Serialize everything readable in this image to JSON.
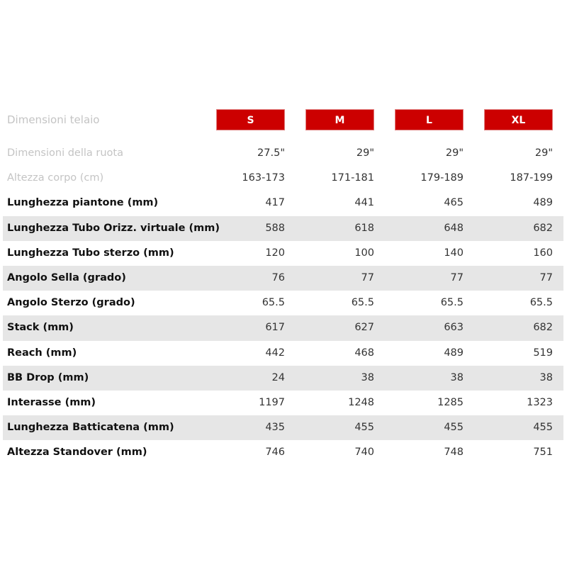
{
  "header": {
    "label": "Dimensioni telaio",
    "sizes": [
      "S",
      "M",
      "L",
      "XL"
    ]
  },
  "colors": {
    "accent": "#cc0000",
    "row_shade": "#e6e6e6"
  },
  "rows": [
    {
      "label": "Dimensioni della ruota",
      "values": [
        "27.5\"",
        "29\"",
        "29\"",
        "29\""
      ],
      "muted": true
    },
    {
      "label": "Altezza corpo (cm)",
      "values": [
        "163-173",
        "171-181",
        "179-189",
        "187-199"
      ],
      "muted": true
    },
    {
      "label": "Lunghezza piantone (mm)",
      "values": [
        "417",
        "441",
        "465",
        "489"
      ]
    },
    {
      "label": "Lunghezza Tubo Orizz. virtuale (mm)",
      "values": [
        "588",
        "618",
        "648",
        "682"
      ]
    },
    {
      "label": "Lunghezza Tubo sterzo (mm)",
      "values": [
        "120",
        "100",
        "140",
        "160"
      ]
    },
    {
      "label": "Angolo Sella (grado)",
      "values": [
        "76",
        "77",
        "77",
        "77"
      ]
    },
    {
      "label": "Angolo Sterzo (grado)",
      "values": [
        "65.5",
        "65.5",
        "65.5",
        "65.5"
      ]
    },
    {
      "label": "Stack (mm)",
      "values": [
        "617",
        "627",
        "663",
        "682"
      ]
    },
    {
      "label": "Reach (mm)",
      "values": [
        "442",
        "468",
        "489",
        "519"
      ]
    },
    {
      "label": "BB Drop (mm)",
      "values": [
        "24",
        "38",
        "38",
        "38"
      ]
    },
    {
      "label": "Interasse (mm)",
      "values": [
        "1197",
        "1248",
        "1285",
        "1323"
      ]
    },
    {
      "label": "Lunghezza Batticatena (mm)",
      "values": [
        "435",
        "455",
        "455",
        "455"
      ]
    },
    {
      "label": "Altezza Standover (mm)",
      "values": [
        "746",
        "740",
        "748",
        "751"
      ]
    }
  ]
}
